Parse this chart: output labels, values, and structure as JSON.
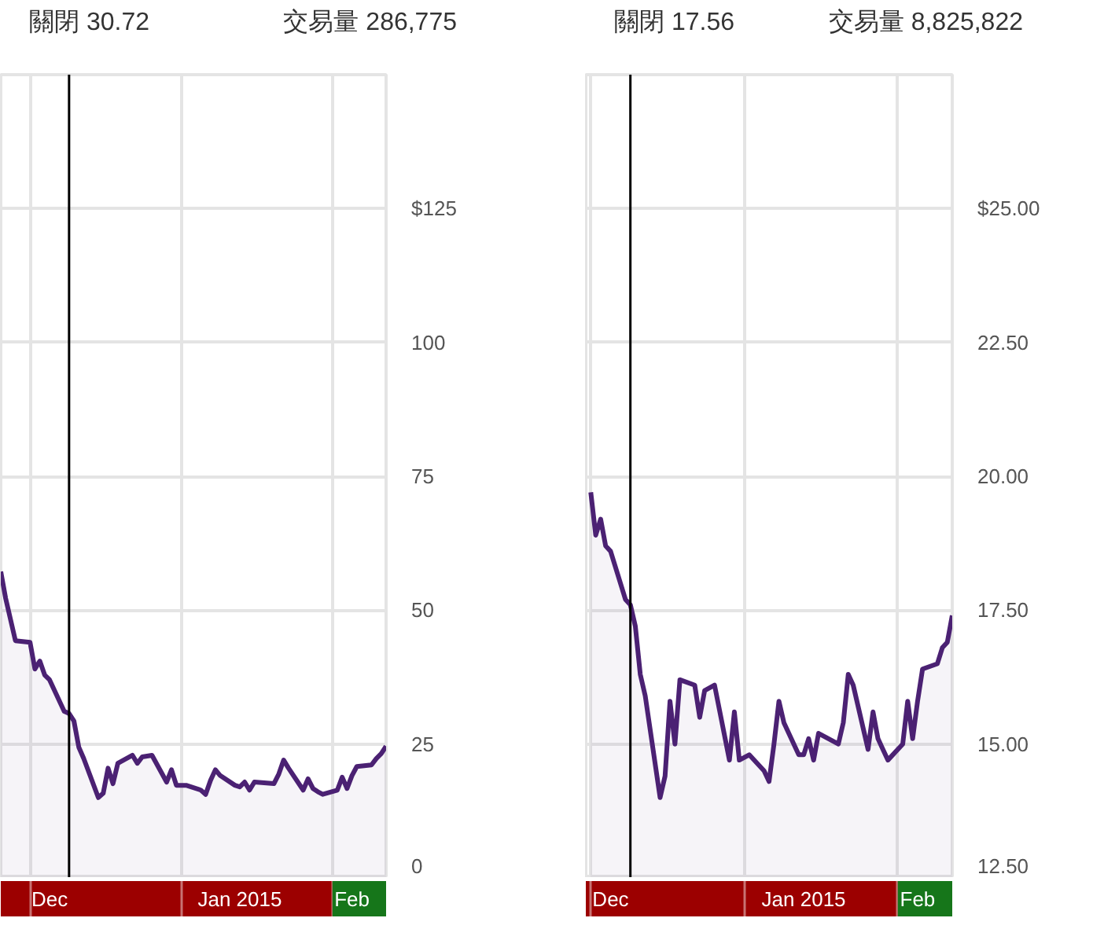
{
  "chart_data": [
    {
      "type": "area",
      "annotations": [
        "關閉 30.72",
        "交易量 286,775"
      ],
      "x": [
        "2014-11-25",
        "2014-11-26",
        "2014-11-28",
        "2014-12-01",
        "2014-12-02",
        "2014-12-03",
        "2014-12-04",
        "2014-12-05",
        "2014-12-08",
        "2014-12-09",
        "2014-12-10",
        "2014-12-11",
        "2014-12-12",
        "2014-12-15",
        "2014-12-16",
        "2014-12-17",
        "2014-12-18",
        "2014-12-19",
        "2014-12-22",
        "2014-12-23",
        "2014-12-24",
        "2014-12-26",
        "2014-12-29",
        "2014-12-30",
        "2014-12-31",
        "2015-01-02",
        "2015-01-05",
        "2015-01-06",
        "2015-01-07",
        "2015-01-08",
        "2015-01-09",
        "2015-01-12",
        "2015-01-13",
        "2015-01-14",
        "2015-01-15",
        "2015-01-16",
        "2015-01-20",
        "2015-01-21",
        "2015-01-22",
        "2015-01-23",
        "2015-01-26",
        "2015-01-27",
        "2015-01-28",
        "2015-01-29",
        "2015-01-30",
        "2015-02-02",
        "2015-02-03",
        "2015-02-04",
        "2015-02-05",
        "2015-02-06",
        "2015-02-09",
        "2015-02-10",
        "2015-02-11",
        "2015-02-12"
      ],
      "series": [
        {
          "color": "#4b2173",
          "values": [
            57.2,
            52.2,
            44.3,
            44.0,
            39.0,
            40.5,
            37.9,
            37.0,
            31.1,
            30.7,
            29.3,
            24.4,
            22.3,
            15.0,
            15.8,
            20.5,
            17.6,
            21.4,
            22.9,
            21.4,
            22.6,
            22.9,
            17.9,
            20.2,
            17.3,
            17.3,
            16.4,
            15.6,
            18.2,
            20.2,
            19.1,
            17.3,
            17.0,
            17.9,
            16.4,
            17.9,
            17.6,
            19.4,
            22.0,
            20.5,
            16.4,
            18.5,
            16.7,
            16.1,
            15.6,
            16.4,
            18.8,
            16.7,
            19.1,
            20.8,
            21.1,
            22.3,
            23.2,
            24.6
          ]
        }
      ],
      "xlim": [
        "2014-11-25",
        "2015-02-12"
      ],
      "xticks": [
        {
          "value": "2014-12-01",
          "label": null
        },
        {
          "value": "2014-12-05",
          "label": "Dec"
        },
        {
          "value": "2015-01-01",
          "label": null
        },
        {
          "value": "2015-01-13",
          "label": "Jan 2015"
        },
        {
          "value": "2015-02-01",
          "label": null
        },
        {
          "value": "2015-02-05",
          "label": "Feb"
        }
      ],
      "ylim": [
        0,
        150
      ],
      "yticks": [
        0,
        25,
        50,
        75,
        100,
        {
          "value": 125,
          "label": "$125"
        }
      ],
      "grid": true,
      "ref_lines": [
        {
          "axis": "x",
          "value": "2014-12-09",
          "color": "#000000"
        }
      ]
    },
    {
      "type": "area",
      "annotations": [
        "關閉 17.56",
        "交易量 8,825,822"
      ],
      "x": [
        "2014-12-01",
        "2014-12-02",
        "2014-12-03",
        "2014-12-04",
        "2014-12-05",
        "2014-12-08",
        "2014-12-09",
        "2014-12-10",
        "2014-12-11",
        "2014-12-12",
        "2014-12-15",
        "2014-12-16",
        "2014-12-17",
        "2014-12-18",
        "2014-12-19",
        "2014-12-22",
        "2014-12-23",
        "2014-12-24",
        "2014-12-26",
        "2014-12-29",
        "2014-12-30",
        "2014-12-31",
        "2015-01-02",
        "2015-01-05",
        "2015-01-06",
        "2015-01-07",
        "2015-01-08",
        "2015-01-09",
        "2015-01-12",
        "2015-01-13",
        "2015-01-14",
        "2015-01-15",
        "2015-01-16",
        "2015-01-20",
        "2015-01-21",
        "2015-01-22",
        "2015-01-23",
        "2015-01-26",
        "2015-01-27",
        "2015-01-28",
        "2015-01-29",
        "2015-01-30",
        "2015-02-02",
        "2015-02-03",
        "2015-02-04",
        "2015-02-05",
        "2015-02-06",
        "2015-02-09",
        "2015-02-10",
        "2015-02-11",
        "2015-02-12"
      ],
      "series": [
        {
          "color": "#4b2173",
          "values": [
            19.7,
            18.9,
            19.2,
            18.7,
            18.6,
            17.7,
            17.6,
            17.2,
            16.3,
            15.9,
            14.0,
            14.4,
            15.8,
            15.0,
            16.2,
            16.1,
            15.5,
            16.0,
            16.1,
            14.7,
            15.6,
            14.7,
            14.8,
            14.5,
            14.3,
            15.0,
            15.8,
            15.4,
            14.8,
            14.8,
            15.1,
            14.7,
            15.2,
            15.0,
            15.4,
            16.3,
            16.1,
            14.9,
            15.6,
            15.1,
            14.9,
            14.7,
            15.0,
            15.8,
            15.1,
            15.8,
            16.4,
            16.5,
            16.8,
            16.9,
            17.4
          ]
        }
      ],
      "xlim": [
        "2014-11-30",
        "2015-02-12"
      ],
      "xticks": [
        {
          "value": "2014-12-01",
          "label": null
        },
        {
          "value": "2014-12-05",
          "label": "Dec"
        },
        {
          "value": "2015-01-01",
          "label": null
        },
        {
          "value": "2015-01-13",
          "label": "Jan 2015"
        },
        {
          "value": "2015-02-01",
          "label": null
        },
        {
          "value": "2015-02-05",
          "label": "Feb"
        }
      ],
      "ylim": [
        12.5,
        27.5
      ],
      "yticks": [
        {
          "value": 12.5,
          "label": "12.50"
        },
        {
          "value": 15,
          "label": "15.00"
        },
        {
          "value": 17.5,
          "label": "17.50"
        },
        {
          "value": 20,
          "label": "20.00"
        },
        {
          "value": 22.5,
          "label": "22.50"
        },
        {
          "value": 25,
          "label": "$25.00"
        }
      ],
      "grid": true,
      "ref_lines": [
        {
          "axis": "x",
          "value": "2014-12-09",
          "color": "#000000"
        }
      ]
    }
  ]
}
